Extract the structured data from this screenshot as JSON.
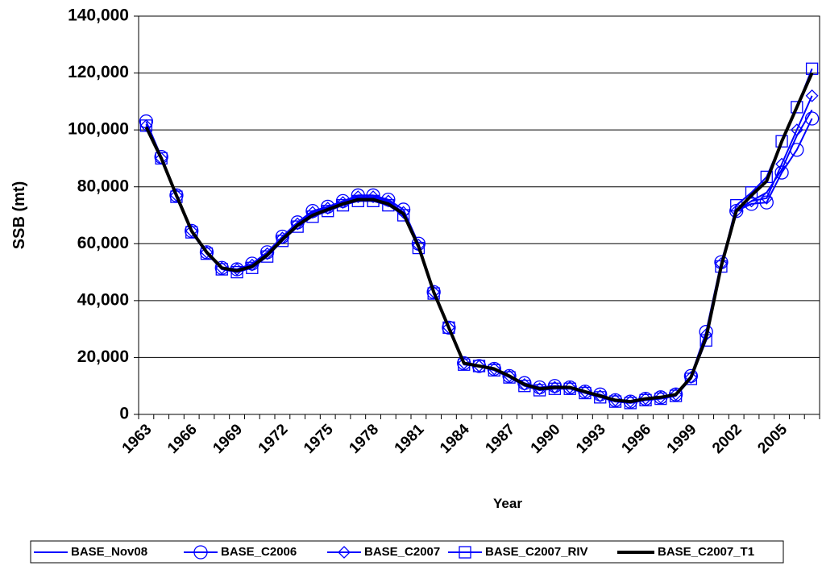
{
  "chart_data": {
    "type": "line",
    "xlabel": "Year",
    "ylabel": "SSB (mt)",
    "categories": [
      "1963",
      null,
      null,
      "1966",
      null,
      null,
      "1969",
      null,
      null,
      "1972",
      null,
      null,
      "1975",
      null,
      null,
      "1978",
      null,
      null,
      "1981",
      null,
      null,
      "1984",
      null,
      null,
      "1987",
      null,
      null,
      "1990",
      null,
      null,
      "1993",
      null,
      null,
      "1996",
      null,
      null,
      "1999",
      null,
      null,
      "2002",
      null,
      null,
      "2005",
      null,
      null
    ],
    "ylim": [
      0,
      140000
    ],
    "yticks": [
      0,
      {
        "value": 20000,
        "label": "20,000"
      },
      {
        "value": 40000,
        "label": "40,000"
      },
      {
        "value": 60000,
        "label": "60,000"
      },
      {
        "value": 80000,
        "label": "80,000"
      },
      {
        "value": 100000,
        "label": "100,000"
      },
      {
        "value": 120000,
        "label": "120,000"
      },
      {
        "value": 140000,
        "label": "140,000"
      }
    ],
    "grid": true,
    "legend": "bottom",
    "series": [
      {
        "name": "BASE_Nov08",
        "color": "#0000ff",
        "marker": "none",
        "values": [
          102000,
          90000,
          77000,
          64500,
          57000,
          51500,
          50500,
          52500,
          56500,
          62000,
          67000,
          70500,
          72500,
          74500,
          76000,
          76000,
          74500,
          71000,
          59500,
          43000,
          30500,
          18000,
          17000,
          16000,
          13500,
          10500,
          9000,
          9500,
          9500,
          8000,
          6500,
          5000,
          4500,
          5500,
          6000,
          7000,
          13000,
          28000,
          53000,
          71500,
          75000,
          78000,
          86000,
          98000,
          107000
        ]
      },
      {
        "name": "BASE_C2006",
        "color": "#0000ff",
        "marker": "circle",
        "values": [
          103000,
          90500,
          77000,
          64500,
          57000,
          51500,
          51000,
          53000,
          57000,
          62500,
          67500,
          71500,
          73000,
          75000,
          77000,
          77000,
          75500,
          72000,
          60000,
          43000,
          30500,
          18000,
          17000,
          16000,
          13500,
          11000,
          9500,
          10000,
          9500,
          8000,
          7000,
          5000,
          4500,
          5500,
          6000,
          7000,
          13500,
          29000,
          53500,
          71500,
          74000,
          74500,
          85000,
          93000,
          104000
        ]
      },
      {
        "name": "BASE_C2007",
        "color": "#0000ff",
        "marker": "diamond",
        "values": [
          101500,
          90000,
          77000,
          64500,
          57000,
          51500,
          51000,
          52500,
          56500,
          62000,
          67000,
          71000,
          72500,
          74500,
          76500,
          76500,
          75000,
          71000,
          59500,
          43000,
          30500,
          18000,
          17000,
          16000,
          13500,
          10500,
          9000,
          9500,
          9500,
          8000,
          6500,
          5000,
          4500,
          5500,
          6000,
          7000,
          13000,
          28000,
          53000,
          71500,
          75000,
          76000,
          88000,
          100000,
          112000
        ]
      },
      {
        "name": "BASE_C2007_RIV",
        "color": "#0000ff",
        "marker": "square",
        "values": [
          101500,
          90000,
          76500,
          64000,
          56500,
          51000,
          50000,
          51500,
          55500,
          61000,
          66000,
          69500,
          71500,
          73500,
          75000,
          75000,
          73500,
          70000,
          58500,
          42500,
          30500,
          17500,
          17000,
          15500,
          13000,
          10000,
          8500,
          9000,
          9000,
          7500,
          6000,
          4500,
          4000,
          5000,
          5500,
          6500,
          12500,
          26000,
          52000,
          73500,
          78000,
          83500,
          96000,
          108000,
          121500
        ]
      },
      {
        "name": "BASE_C2007_T1",
        "color": "#000000",
        "marker": "none",
        "width": 4,
        "values": [
          101000,
          90000,
          77000,
          64500,
          57000,
          51500,
          50500,
          52000,
          56000,
          61500,
          66500,
          70000,
          72000,
          74000,
          75500,
          75500,
          74000,
          70500,
          59000,
          43000,
          30500,
          18000,
          17000,
          16000,
          13500,
          10500,
          9000,
          9500,
          9500,
          8000,
          6500,
          5000,
          4500,
          5500,
          6000,
          7000,
          13000,
          27000,
          52000,
          71500,
          77000,
          82000,
          96000,
          108000,
          120000
        ]
      }
    ]
  }
}
